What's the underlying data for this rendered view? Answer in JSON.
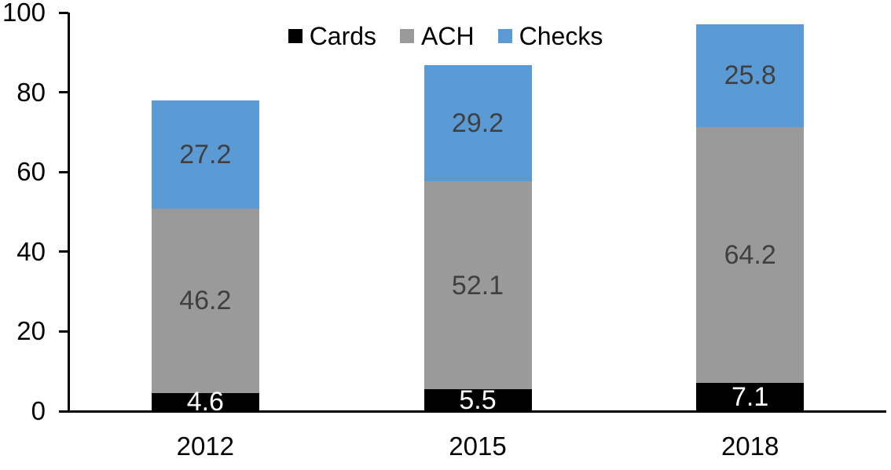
{
  "chart_data": {
    "type": "bar",
    "stacked": true,
    "title": "",
    "xlabel": "",
    "ylabel": "",
    "categories": [
      "2012",
      "2015",
      "2018"
    ],
    "series": [
      {
        "name": "Cards",
        "color": "#000000",
        "label_color": "#ffffff",
        "values": [
          4.6,
          5.5,
          7.1
        ]
      },
      {
        "name": "ACH",
        "color": "#9a9a9a",
        "label_color": "#404040",
        "values": [
          46.2,
          52.1,
          64.2
        ]
      },
      {
        "name": "Checks",
        "color": "#5b9bd5",
        "label_color": "#404040",
        "values": [
          27.2,
          29.2,
          25.8
        ]
      }
    ],
    "totals": [
      78.0,
      86.8,
      97.1
    ],
    "ylim": [
      0,
      100
    ],
    "yticks": [
      0,
      20,
      40,
      60,
      80,
      100
    ],
    "grid": false,
    "legend_position": "top-center",
    "value_label_decimals": 1,
    "axis_color": "#000000"
  }
}
